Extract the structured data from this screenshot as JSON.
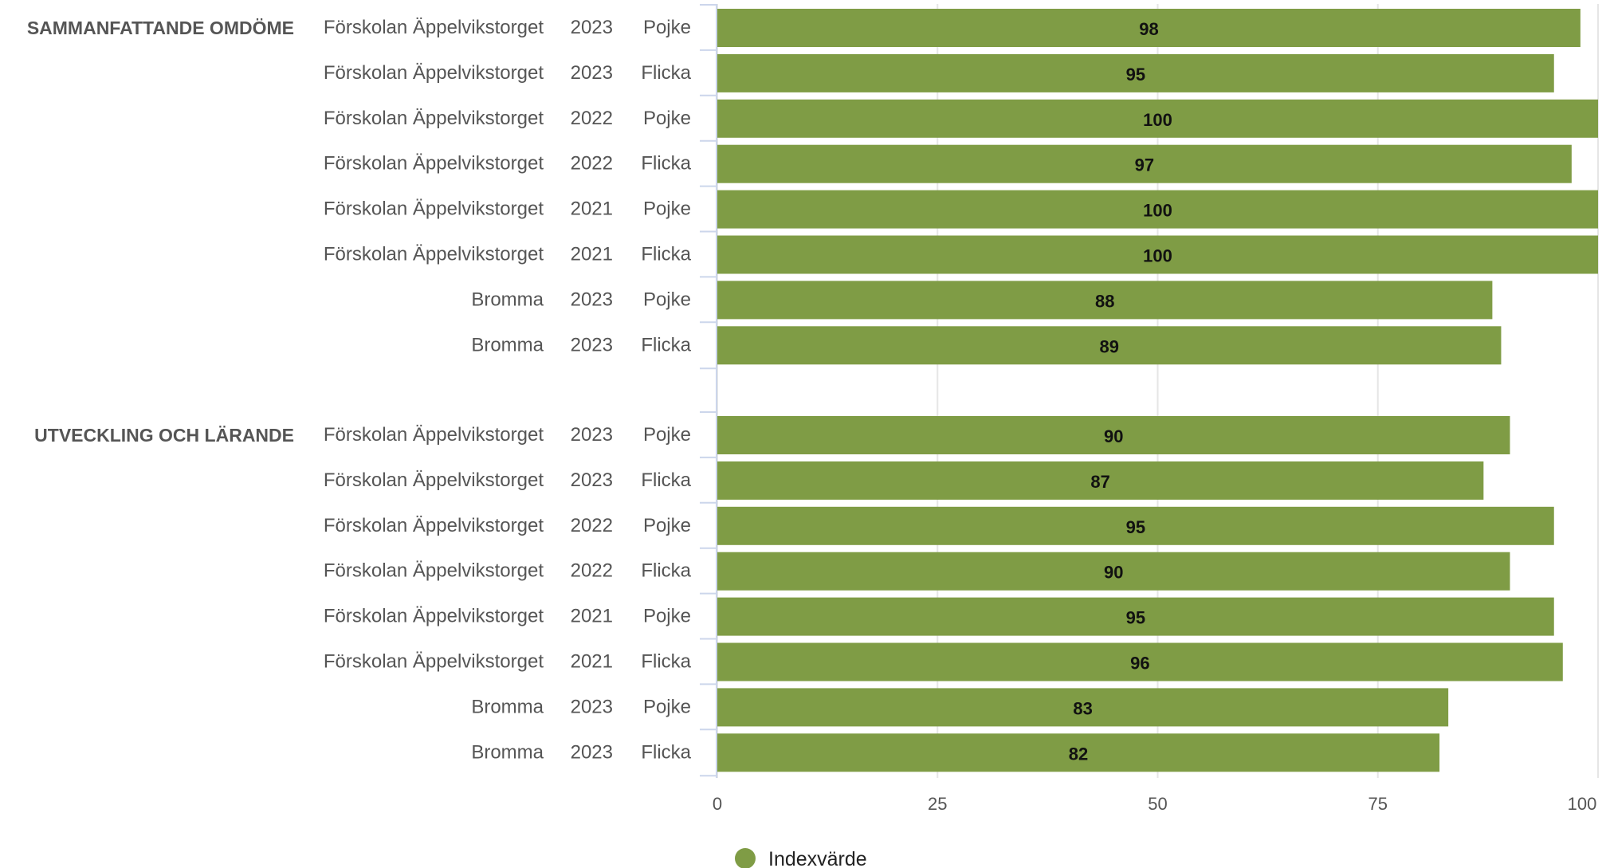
{
  "chart_data": {
    "type": "bar",
    "orientation": "horizontal",
    "xlim": [
      0,
      100
    ],
    "ticks": [
      "0",
      "25",
      "50",
      "75",
      "100"
    ],
    "grid": true,
    "legend_placement": "bottom-center",
    "colors": {
      "bar": "#7f9c45",
      "grid": "#e6e6e6",
      "axis": "#ccd6eb"
    },
    "series": [
      {
        "name": "Indexvärde",
        "color": "#7f9c45"
      }
    ],
    "groups": [
      {
        "label": "SAMMANFATTANDE OMDÖME",
        "rows": [
          {
            "unit": "Förskolan Äppelvikstorget",
            "year": "2023",
            "gender": "Pojke",
            "value": 98
          },
          {
            "unit": "Förskolan Äppelvikstorget",
            "year": "2023",
            "gender": "Flicka",
            "value": 95
          },
          {
            "unit": "Förskolan Äppelvikstorget",
            "year": "2022",
            "gender": "Pojke",
            "value": 100
          },
          {
            "unit": "Förskolan Äppelvikstorget",
            "year": "2022",
            "gender": "Flicka",
            "value": 97
          },
          {
            "unit": "Förskolan Äppelvikstorget",
            "year": "2021",
            "gender": "Pojke",
            "value": 100
          },
          {
            "unit": "Förskolan Äppelvikstorget",
            "year": "2021",
            "gender": "Flicka",
            "value": 100
          },
          {
            "unit": "Bromma",
            "year": "2023",
            "gender": "Pojke",
            "value": 88
          },
          {
            "unit": "Bromma",
            "year": "2023",
            "gender": "Flicka",
            "value": 89
          }
        ]
      },
      {
        "label": "UTVECKLING OCH LÄRANDE",
        "rows": [
          {
            "unit": "Förskolan Äppelvikstorget",
            "year": "2023",
            "gender": "Pojke",
            "value": 90
          },
          {
            "unit": "Förskolan Äppelvikstorget",
            "year": "2023",
            "gender": "Flicka",
            "value": 87
          },
          {
            "unit": "Förskolan Äppelvikstorget",
            "year": "2022",
            "gender": "Pojke",
            "value": 95
          },
          {
            "unit": "Förskolan Äppelvikstorget",
            "year": "2022",
            "gender": "Flicka",
            "value": 90
          },
          {
            "unit": "Förskolan Äppelvikstorget",
            "year": "2021",
            "gender": "Pojke",
            "value": 95
          },
          {
            "unit": "Förskolan Äppelvikstorget",
            "year": "2021",
            "gender": "Flicka",
            "value": 96
          },
          {
            "unit": "Bromma",
            "year": "2023",
            "gender": "Pojke",
            "value": 83
          },
          {
            "unit": "Bromma",
            "year": "2023",
            "gender": "Flicka",
            "value": 82
          }
        ]
      }
    ]
  }
}
